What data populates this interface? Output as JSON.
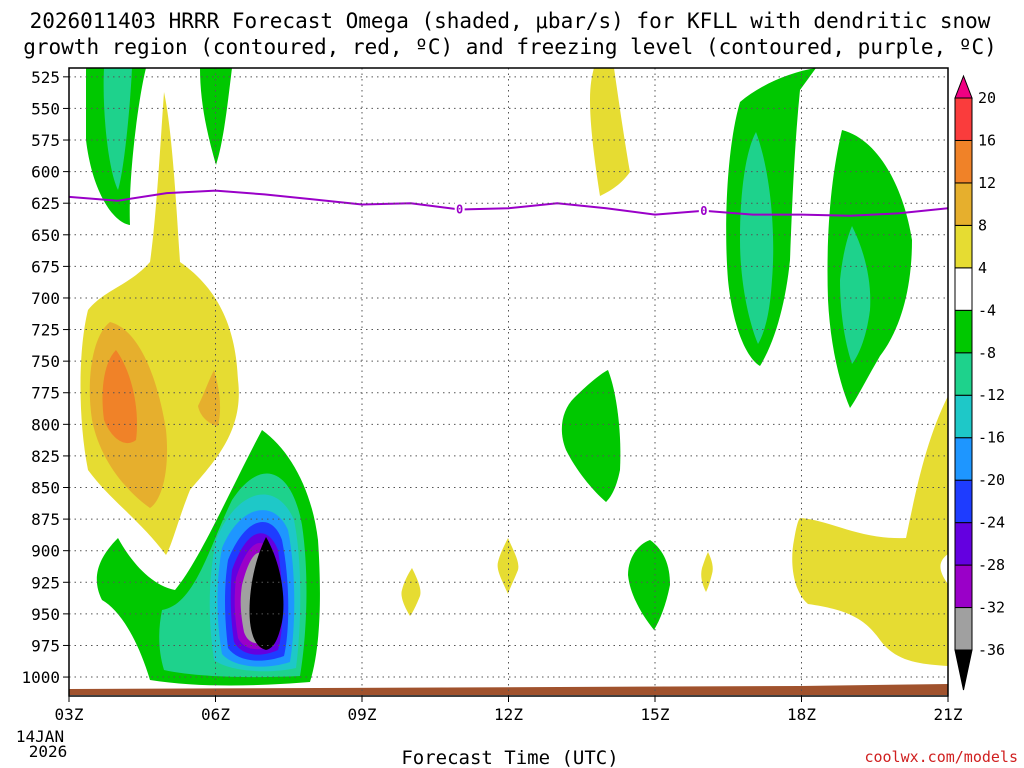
{
  "chart_data": {
    "type": "heatmap",
    "title_line1": "2026011403 HRRR Forecast Omega (shaded, μbar/s) for KFLL with dendritic snow",
    "title_line2": "growth region (contoured, red, ºC) and freezing level (contoured, purple, ºC)",
    "xlabel": "Forecast Time (UTC)",
    "x_ticks": [
      "03Z",
      "06Z",
      "09Z",
      "12Z",
      "15Z",
      "18Z",
      "21Z"
    ],
    "x_tick_hours": [
      3,
      6,
      9,
      12,
      15,
      18,
      21
    ],
    "x_date_line1": "14JAN",
    "x_date_line2": "2026",
    "xlim": [
      3,
      21
    ],
    "y_ticks": [
      525,
      550,
      575,
      600,
      625,
      650,
      675,
      700,
      725,
      750,
      775,
      800,
      825,
      850,
      875,
      900,
      925,
      950,
      975,
      1000
    ],
    "ylim": [
      1015,
      518
    ],
    "colorbar": {
      "levels": [
        -36,
        -32,
        -28,
        -24,
        -20,
        -16,
        -12,
        -8,
        -4,
        4,
        8,
        12,
        16,
        20
      ],
      "labels": [
        "20",
        "16",
        "12",
        "8",
        "4",
        "-4",
        "-8",
        "-12",
        "-16",
        "-20",
        "-24",
        "-28",
        "-32",
        "-36"
      ],
      "colors": [
        "#000000",
        "#a0a0a0",
        "#9a00c8",
        "#6400e0",
        "#1e3cff",
        "#1e96ff",
        "#1ec8c8",
        "#1ed28c",
        "#00c800",
        "#ffffff",
        "#e6dc32",
        "#e6af2d",
        "#f08228",
        "#fa3c3c",
        "#f00082"
      ]
    },
    "freezing_level": {
      "label": "0",
      "label_hours": [
        11,
        16
      ],
      "hours": [
        3,
        4,
        5,
        6,
        7,
        8,
        9,
        10,
        11,
        12,
        13,
        14,
        15,
        16,
        17,
        18,
        19,
        20,
        21
      ],
      "pressure": [
        620,
        623,
        617,
        615,
        618,
        622,
        626,
        625,
        630,
        629,
        625,
        629,
        634,
        631,
        634,
        634,
        635,
        633,
        629
      ]
    },
    "omega_regions": [
      {
        "name": "upper-left-ascent",
        "value": -8,
        "center_hour": 3.9,
        "center_p": 560
      },
      {
        "name": "upper-left-core",
        "value": -12,
        "center_hour": 3.9,
        "center_p": 550
      },
      {
        "name": "upper-ascent-06z",
        "value": -8,
        "center_hour": 6.0,
        "center_p": 535
      },
      {
        "name": "sinking-plume-05z",
        "value": 6,
        "center_hour": 4.6,
        "center_p": 730
      },
      {
        "name": "sinking-core-04z",
        "value": 10,
        "center_hour": 4.1,
        "center_p": 735
      },
      {
        "name": "sinking-max-04z",
        "value": 14,
        "center_hour": 4.1,
        "center_p": 740
      },
      {
        "name": "low-level-ascent",
        "value": -36,
        "center_hour": 7.0,
        "center_p": 910
      },
      {
        "name": "mid-ascent-13z",
        "value": -8,
        "center_hour": 14.0,
        "center_p": 765
      },
      {
        "name": "sinking-14z-upper",
        "value": 6,
        "center_hour": 14.2,
        "center_p": 560
      },
      {
        "name": "ascent-17z",
        "value": -12,
        "center_hour": 17.5,
        "center_p": 640
      },
      {
        "name": "ascent-19z",
        "value": -12,
        "center_hour": 19.5,
        "center_p": 660
      },
      {
        "name": "sinking-20z-lower",
        "value": 6,
        "center_hour": 20.0,
        "center_p": 890
      },
      {
        "name": "ascent-15z-lower",
        "value": -8,
        "center_hour": 14.9,
        "center_p": 905
      }
    ]
  },
  "credit": "coolwx.com/models"
}
